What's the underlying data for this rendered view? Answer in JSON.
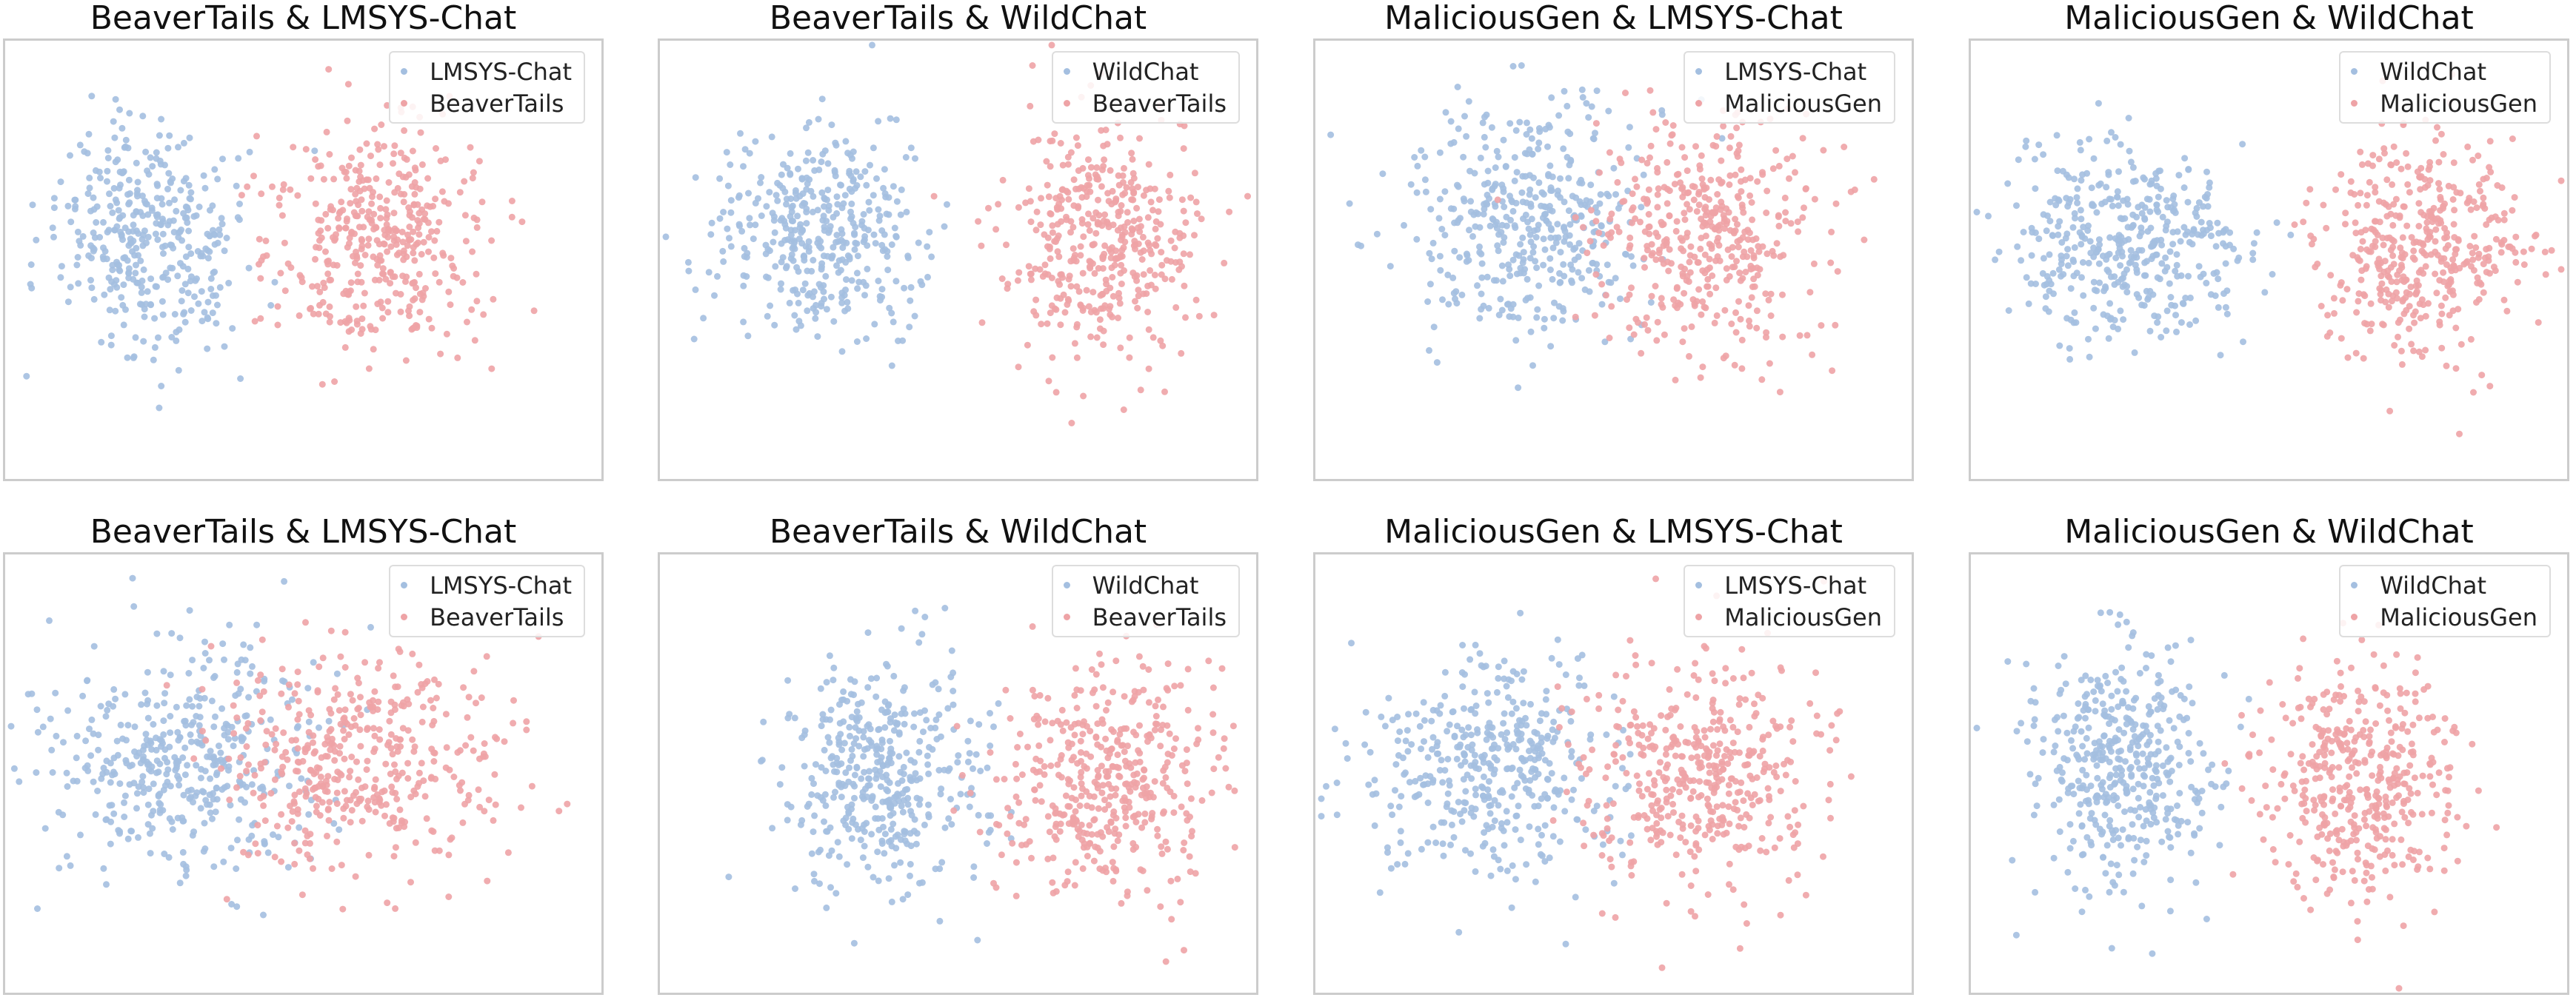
{
  "colors": {
    "blue": "#a4bfe0",
    "red": "#eea3a6"
  },
  "chart_data": [
    {
      "type": "scatter",
      "title": "BeaverTails & LMSYS-Chat",
      "xlabel": "",
      "ylabel": "",
      "grid": false,
      "legend_position": "top-right",
      "xlim": [
        -10,
        10
      ],
      "ylim": [
        -10,
        10
      ],
      "series": [
        {
          "name": "LMSYS-Chat",
          "color": "#a4bfe0",
          "n": 380,
          "center": [
            -5.2,
            0.8
          ],
          "spread": [
            1.6,
            2.5
          ],
          "seed": 11
        },
        {
          "name": "BeaverTails",
          "color": "#eea3a6",
          "n": 420,
          "center": [
            2.6,
            0.7
          ],
          "spread": [
            1.7,
            2.6
          ],
          "seed": 12
        }
      ]
    },
    {
      "type": "scatter",
      "title": "BeaverTails & WildChat",
      "xlabel": "",
      "ylabel": "",
      "grid": false,
      "legend_position": "top-right",
      "xlim": [
        -10,
        10
      ],
      "ylim": [
        -10,
        10
      ],
      "series": [
        {
          "name": "WildChat",
          "color": "#a4bfe0",
          "n": 400,
          "center": [
            -4.5,
            1.2
          ],
          "spread": [
            1.8,
            2.5
          ],
          "seed": 21
        },
        {
          "name": "BeaverTails",
          "color": "#eea3a6",
          "n": 420,
          "center": [
            4.8,
            0.9
          ],
          "spread": [
            1.6,
            2.6
          ],
          "seed": 22
        }
      ]
    },
    {
      "type": "scatter",
      "title": "MaliciousGen & LMSYS-Chat",
      "xlabel": "",
      "ylabel": "",
      "grid": false,
      "legend_position": "top-right",
      "xlim": [
        -10,
        10
      ],
      "ylim": [
        -10,
        10
      ],
      "series": [
        {
          "name": "LMSYS-Chat",
          "color": "#a4bfe0",
          "n": 420,
          "center": [
            -2.8,
            1.5
          ],
          "spread": [
            2.0,
            2.8
          ],
          "seed": 31
        },
        {
          "name": "MaliciousGen",
          "color": "#eea3a6",
          "n": 430,
          "center": [
            3.2,
            1.2
          ],
          "spread": [
            2.0,
            2.8
          ],
          "seed": 32
        }
      ]
    },
    {
      "type": "scatter",
      "title": "MaliciousGen & WildChat",
      "xlabel": "",
      "ylabel": "",
      "grid": false,
      "legend_position": "top-right",
      "xlim": [
        -10,
        10
      ],
      "ylim": [
        -10,
        10
      ],
      "series": [
        {
          "name": "WildChat",
          "color": "#a4bfe0",
          "n": 420,
          "center": [
            -4.8,
            0.8
          ],
          "spread": [
            2.0,
            2.2
          ],
          "seed": 41
        },
        {
          "name": "MaliciousGen",
          "color": "#eea3a6",
          "n": 430,
          "center": [
            5.2,
            0.6
          ],
          "spread": [
            1.7,
            2.4
          ],
          "seed": 42
        }
      ]
    },
    {
      "type": "scatter",
      "title": "BeaverTails & LMSYS-Chat",
      "xlabel": "",
      "ylabel": "",
      "grid": false,
      "legend_position": "top-right",
      "xlim": [
        -10,
        10
      ],
      "ylim": [
        -10,
        10
      ],
      "series": [
        {
          "name": "LMSYS-Chat",
          "color": "#a4bfe0",
          "n": 430,
          "center": [
            -3.8,
            0.6
          ],
          "spread": [
            2.2,
            2.6
          ],
          "seed": 51
        },
        {
          "name": "BeaverTails",
          "color": "#eea3a6",
          "n": 430,
          "center": [
            1.8,
            0.4
          ],
          "spread": [
            2.2,
            2.6
          ],
          "seed": 52
        }
      ]
    },
    {
      "type": "scatter",
      "title": "BeaverTails & WildChat",
      "xlabel": "",
      "ylabel": "",
      "grid": false,
      "legend_position": "top-right",
      "xlim": [
        -10,
        10
      ],
      "ylim": [
        -10,
        10
      ],
      "series": [
        {
          "name": "WildChat",
          "color": "#a4bfe0",
          "n": 420,
          "center": [
            -2.5,
            -0.2
          ],
          "spread": [
            1.7,
            2.6
          ],
          "seed": 61
        },
        {
          "name": "BeaverTails",
          "color": "#eea3a6",
          "n": 430,
          "center": [
            4.9,
            -0.4
          ],
          "spread": [
            1.8,
            2.6
          ],
          "seed": 62
        }
      ]
    },
    {
      "type": "scatter",
      "title": "MaliciousGen & LMSYS-Chat",
      "xlabel": "",
      "ylabel": "",
      "grid": false,
      "legend_position": "top-right",
      "xlim": [
        -10,
        10
      ],
      "ylim": [
        -10,
        10
      ],
      "series": [
        {
          "name": "LMSYS-Chat",
          "color": "#a4bfe0",
          "n": 420,
          "center": [
            -4.2,
            0.2
          ],
          "spread": [
            2.0,
            2.5
          ],
          "seed": 71
        },
        {
          "name": "MaliciousGen",
          "color": "#eea3a6",
          "n": 430,
          "center": [
            2.8,
            0.0
          ],
          "spread": [
            2.0,
            2.6
          ],
          "seed": 72
        }
      ]
    },
    {
      "type": "scatter",
      "title": "MaliciousGen & WildChat",
      "xlabel": "",
      "ylabel": "",
      "grid": false,
      "legend_position": "top-right",
      "xlim": [
        -10,
        10
      ],
      "ylim": [
        -10,
        10
      ],
      "series": [
        {
          "name": "WildChat",
          "color": "#a4bfe0",
          "n": 430,
          "center": [
            -5.0,
            0.2
          ],
          "spread": [
            1.5,
            2.7
          ],
          "seed": 81
        },
        {
          "name": "MaliciousGen",
          "color": "#eea3a6",
          "n": 430,
          "center": [
            3.2,
            -0.3
          ],
          "spread": [
            1.6,
            2.7
          ],
          "seed": 82
        }
      ]
    }
  ]
}
